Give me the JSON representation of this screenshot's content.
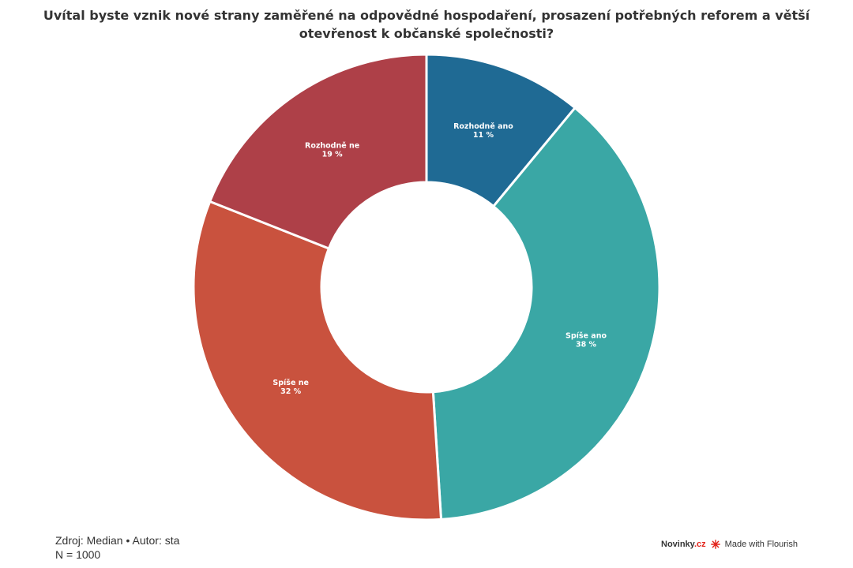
{
  "chart_data": {
    "type": "pie",
    "variant": "donut",
    "title": "Uvítal byste vznik nové strany zaměřené na odpovědné hospodaření, prosazení potřebných reforem a větší otevřenost k občanské společnosti?",
    "slices": [
      {
        "label": "Rozhodně ano",
        "value": 11,
        "value_label": "11 %",
        "color": "#1f6a94"
      },
      {
        "label": "Spíše ano",
        "value": 38,
        "value_label": "38 %",
        "color": "#3aa7a5"
      },
      {
        "label": "Spíše ne",
        "value": 32,
        "value_label": "32 %",
        "color": "#c9523e"
      },
      {
        "label": "Rozhodně ne",
        "value": 19,
        "value_label": "19 %",
        "color": "#ae4048"
      }
    ]
  },
  "footer": {
    "source": "Zdroj: Median • Autor: sta",
    "sample": "N = 1000"
  },
  "branding": {
    "publisher_main": "Novinky",
    "publisher_suffix": ".cz",
    "flourish": "Made with Flourish",
    "flourish_icon": "flourish-logo-icon"
  }
}
